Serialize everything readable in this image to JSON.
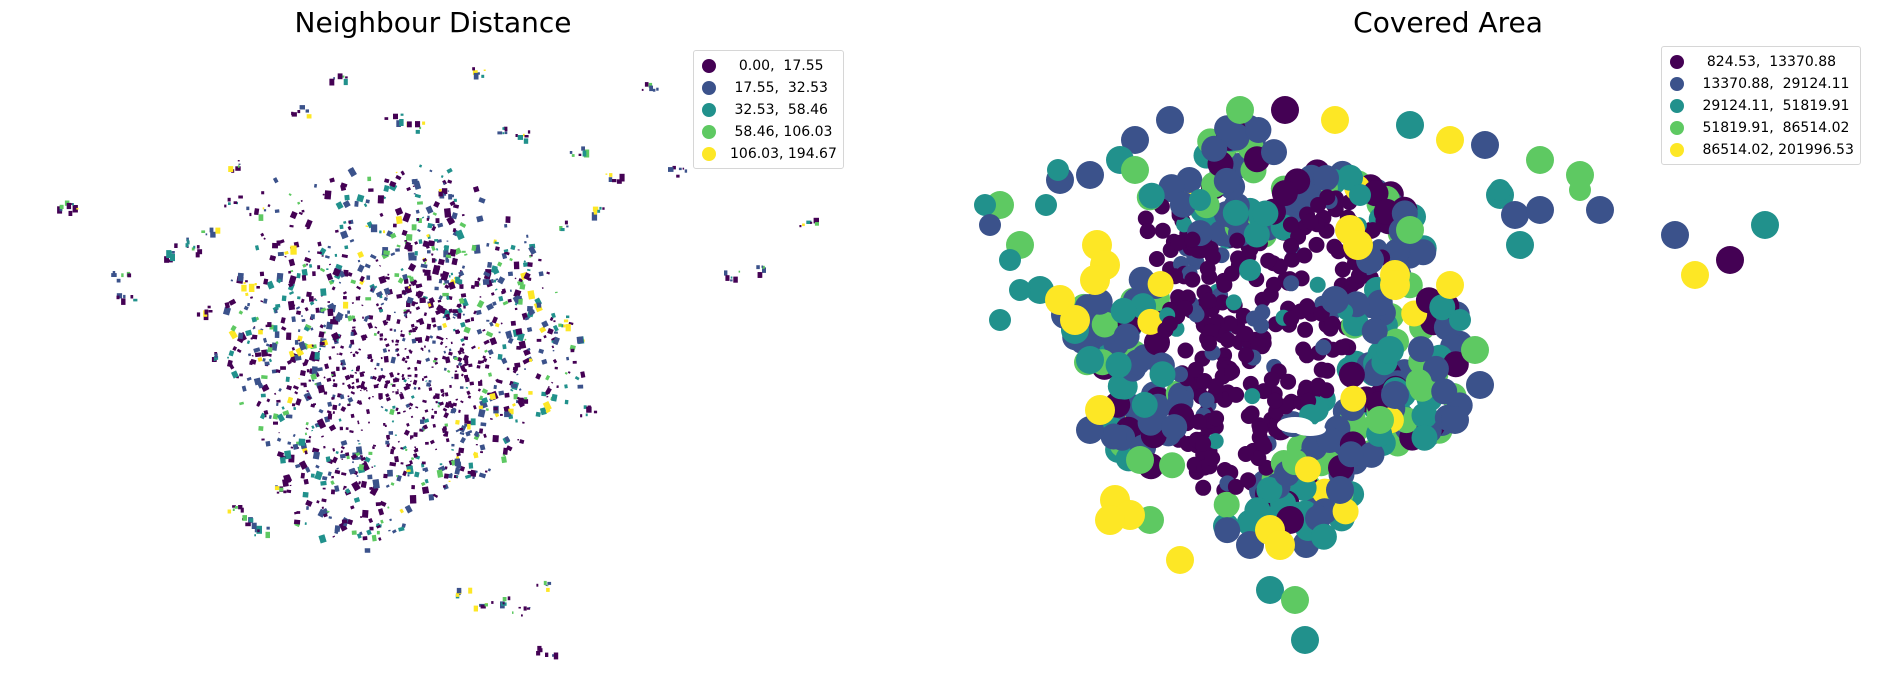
{
  "maps": [
    {
      "title": "Neighbour Distance",
      "legend": [
        {
          "label": "  0.00,  17.55",
          "color": "#440154"
        },
        {
          "label": " 17.55,  32.53",
          "color": "#3b528b"
        },
        {
          "label": " 32.53,  58.46",
          "color": "#21918c"
        },
        {
          "label": " 58.46, 106.03",
          "color": "#5ec962"
        },
        {
          "label": "106.03, 194.67",
          "color": "#fde725"
        }
      ],
      "legend_position": "top-right",
      "style": "building footprints"
    },
    {
      "title": "Covered Area",
      "legend": [
        {
          "label": "  824.53,  13370.88",
          "color": "#440154"
        },
        {
          "label": " 13370.88,  29124.11",
          "color": "#3b528b"
        },
        {
          "label": " 29124.11,  51819.91",
          "color": "#21918c"
        },
        {
          "label": " 51819.91,  86514.02",
          "color": "#5ec962"
        },
        {
          "label": " 86514.02, 201996.53",
          "color": "#fde725"
        }
      ],
      "legend_position": "top-right",
      "style": "tessellation cells"
    }
  ]
}
